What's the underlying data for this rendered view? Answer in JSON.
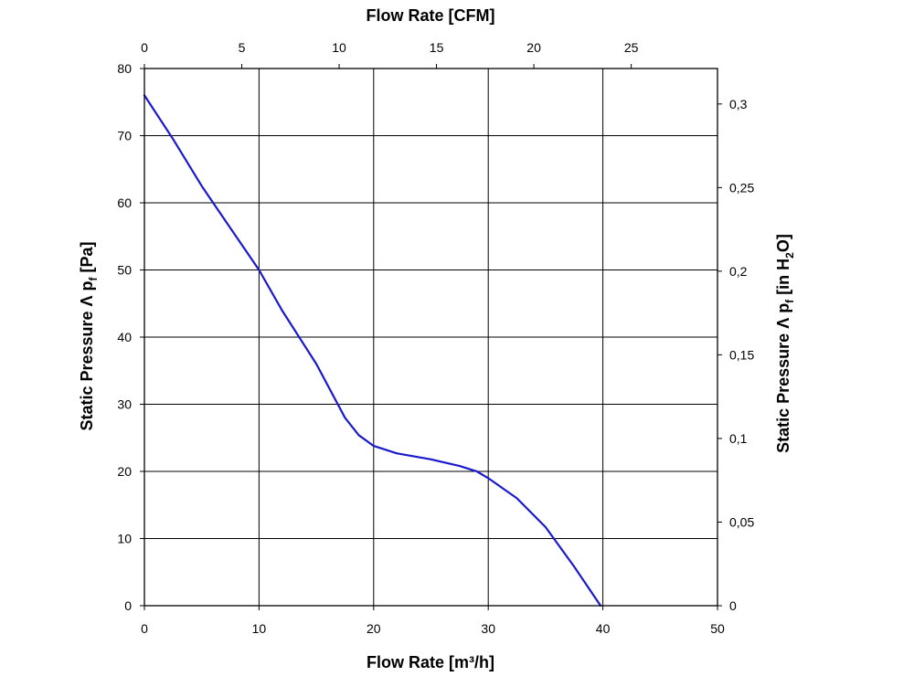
{
  "chart_data": {
    "type": "line",
    "xlabel_bottom": "Flow Rate [m³/h]",
    "xlabel_top": "Flow Rate [CFM]",
    "ylabel_left_main": "Static Pressure Λ p",
    "ylabel_left_sub": "f",
    "ylabel_left_unit": " [Pa]",
    "ylabel_right_main": "Static Pressure Λ p",
    "ylabel_right_sub": "f",
    "ylabel_right_unit_a": " [in H",
    "ylabel_right_unit_sub": "2",
    "ylabel_right_unit_b": "O]",
    "x_bottom": {
      "lim": [
        0,
        50
      ],
      "ticks": [
        0,
        10,
        20,
        30,
        40,
        50
      ],
      "tick_labels": [
        "0",
        "10",
        "20",
        "30",
        "40",
        "50"
      ]
    },
    "x_top": {
      "lim": [
        0,
        29.43
      ],
      "ticks": [
        0,
        5,
        10,
        15,
        20,
        25
      ],
      "tick_labels": [
        "0",
        "5",
        "10",
        "15",
        "20",
        "25"
      ]
    },
    "y_left": {
      "lim": [
        0,
        80
      ],
      "ticks": [
        0,
        10,
        20,
        30,
        40,
        50,
        60,
        70,
        80
      ],
      "tick_labels": [
        "0",
        "10",
        "20",
        "30",
        "40",
        "50",
        "60",
        "70",
        "80"
      ]
    },
    "y_right": {
      "lim": [
        0,
        0.3212
      ],
      "ticks": [
        0,
        0.05,
        0.1,
        0.15,
        0.2,
        0.25,
        0.3
      ],
      "tick_labels": [
        "0",
        "0,05",
        "0,1",
        "0,15",
        "0,2",
        "0,25",
        "0,3"
      ]
    },
    "grid": true,
    "series": [
      {
        "color": "#1a1acc",
        "x": [
          0,
          2.5,
          5,
          6,
          8,
          10,
          12,
          15,
          17.5,
          18.7,
          20,
          22,
          25,
          27.5,
          29,
          30,
          32.5,
          35,
          37.5,
          39.8
        ],
        "y": [
          76,
          69.5,
          62.5,
          60,
          55,
          50,
          44,
          36,
          28,
          25.4,
          23.8,
          22.7,
          21.8,
          20.8,
          20,
          19,
          16,
          11.7,
          5.8,
          0
        ]
      }
    ]
  }
}
